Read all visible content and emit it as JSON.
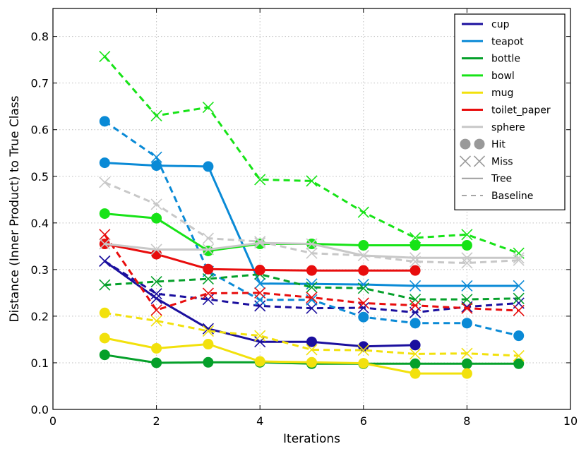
{
  "chart_data": {
    "type": "line",
    "title": "",
    "xlabel": "Iterations",
    "ylabel": "Distance (Inner Product) to True Class",
    "xlim": [
      0,
      10
    ],
    "ylim": [
      0.0,
      0.86
    ],
    "xticks": [
      0,
      2,
      4,
      6,
      8,
      10
    ],
    "xtick_labels": [
      "0",
      "2",
      "4",
      "6",
      "8",
      "10"
    ],
    "yticks": [
      0.0,
      0.1,
      0.2,
      0.3,
      0.4,
      0.5,
      0.6,
      0.7,
      0.8
    ],
    "ytick_labels": [
      "0.0",
      "0.1",
      "0.2",
      "0.3",
      "0.4",
      "0.5",
      "0.6",
      "0.7",
      "0.8"
    ],
    "grid": true,
    "legend_position": "top-right",
    "legend_style_entries": [
      {
        "label": "Hit",
        "marker": "circle"
      },
      {
        "label": "Miss",
        "marker": "x"
      },
      {
        "label": "Tree",
        "linestyle": "solid"
      },
      {
        "label": "Baseline",
        "linestyle": "dashed"
      }
    ],
    "series": [
      {
        "name": "cup",
        "color": "#1b0f9e",
        "tree": {
          "x": [
            1,
            2,
            3,
            4,
            5,
            6,
            7
          ],
          "y": [
            0.318,
            0.238,
            0.173,
            0.145,
            0.145,
            0.135,
            0.138
          ],
          "markers": [
            "x",
            "x",
            "x",
            "x",
            "o",
            "o",
            "o"
          ]
        },
        "baseline": {
          "x": [
            1,
            2,
            3,
            4,
            5,
            6,
            7,
            8,
            9
          ],
          "y": [
            0.318,
            0.248,
            0.236,
            0.222,
            0.217,
            0.218,
            0.208,
            0.22,
            0.228
          ],
          "markers": [
            "x",
            "x",
            "x",
            "x",
            "x",
            "x",
            "x",
            "x",
            "x"
          ]
        }
      },
      {
        "name": "teapot",
        "color": "#0a8ad6",
        "tree": {
          "x": [
            1,
            2,
            3,
            4,
            5,
            6,
            7,
            8,
            9
          ],
          "y": [
            0.529,
            0.523,
            0.521,
            0.27,
            0.269,
            0.268,
            0.265,
            0.265,
            0.265
          ],
          "markers": [
            "o",
            "o",
            "o",
            "x",
            "x",
            "x",
            "x",
            "x",
            "x"
          ]
        },
        "baseline": {
          "x": [
            1,
            2,
            3,
            4,
            5,
            6,
            7,
            8,
            9
          ],
          "y": [
            0.618,
            0.541,
            0.296,
            0.235,
            0.235,
            0.198,
            0.185,
            0.185,
            0.158
          ],
          "markers": [
            "o",
            "x",
            "x",
            "x",
            "x",
            "o",
            "o",
            "o",
            "o"
          ]
        }
      },
      {
        "name": "bottle",
        "color": "#05a02a",
        "tree": {
          "x": [
            1,
            2,
            3,
            4,
            5,
            6,
            7,
            8,
            9
          ],
          "y": [
            0.117,
            0.1,
            0.101,
            0.101,
            0.098,
            0.098,
            0.098,
            0.098,
            0.098
          ],
          "markers": [
            "o",
            "o",
            "o",
            "o",
            "o",
            "o",
            "o",
            "o",
            "o"
          ]
        },
        "baseline": {
          "x": [
            1,
            2,
            3,
            4,
            5,
            6,
            7,
            8,
            9
          ],
          "y": [
            0.267,
            0.274,
            0.28,
            0.29,
            0.262,
            0.26,
            0.236,
            0.236,
            0.238
          ],
          "markers": [
            "x",
            "x",
            "x",
            "x",
            "x",
            "x",
            "x",
            "x",
            "x"
          ]
        }
      },
      {
        "name": "bowl",
        "color": "#17e317",
        "tree": {
          "x": [
            1,
            2,
            3,
            4,
            5,
            6,
            7,
            8
          ],
          "y": [
            0.42,
            0.41,
            0.34,
            0.355,
            0.355,
            0.352,
            0.352,
            0.352
          ],
          "markers": [
            "o",
            "o",
            "o",
            "o",
            "o",
            "o",
            "o",
            "o"
          ]
        },
        "baseline": {
          "x": [
            1,
            2,
            3,
            4,
            5,
            6,
            7,
            8,
            9
          ],
          "y": [
            0.757,
            0.63,
            0.648,
            0.493,
            0.49,
            0.423,
            0.368,
            0.375,
            0.335
          ],
          "markers": [
            "x",
            "x",
            "x",
            "x",
            "x",
            "x",
            "x",
            "x",
            "x"
          ]
        }
      },
      {
        "name": "mug",
        "color": "#f2e10c",
        "tree": {
          "x": [
            1,
            2,
            3,
            4,
            5,
            6,
            7,
            8
          ],
          "y": [
            0.153,
            0.131,
            0.14,
            0.103,
            0.101,
            0.099,
            0.077,
            0.077
          ],
          "markers": [
            "o",
            "o",
            "o",
            "o",
            "o",
            "o",
            "o",
            "o"
          ]
        },
        "baseline": {
          "x": [
            1,
            2,
            3,
            4,
            5,
            6,
            7,
            8,
            9
          ],
          "y": [
            0.207,
            0.19,
            0.168,
            0.158,
            0.128,
            0.127,
            0.119,
            0.12,
            0.115
          ],
          "markers": [
            "o",
            "x",
            "x",
            "x",
            "x",
            "x",
            "x",
            "x",
            "x"
          ]
        }
      },
      {
        "name": "toilet_paper",
        "color": "#e80d0d",
        "tree": {
          "x": [
            1,
            2,
            3,
            4,
            5,
            6,
            7
          ],
          "y": [
            0.355,
            0.333,
            0.301,
            0.299,
            0.298,
            0.298,
            0.298
          ],
          "markers": [
            "o",
            "o",
            "o",
            "o",
            "o",
            "o",
            "o"
          ]
        },
        "baseline": {
          "x": [
            1,
            2,
            3,
            4,
            5,
            6,
            7,
            8,
            9
          ],
          "y": [
            0.375,
            0.213,
            0.249,
            0.25,
            0.24,
            0.228,
            0.223,
            0.217,
            0.212
          ],
          "markers": [
            "x",
            "x",
            "x",
            "x",
            "x",
            "x",
            "x",
            "x",
            "x"
          ]
        }
      },
      {
        "name": "sphere",
        "color": "#c8c8c8",
        "tree": {
          "x": [
            1,
            2,
            3,
            4,
            5,
            6,
            7,
            8,
            9
          ],
          "y": [
            0.355,
            0.343,
            0.343,
            0.357,
            0.355,
            0.33,
            0.325,
            0.325,
            0.325
          ],
          "markers": [
            "x",
            "x",
            "x",
            "x",
            "x",
            "x",
            "x",
            "x",
            "x"
          ]
        },
        "baseline": {
          "x": [
            1,
            2,
            3,
            4,
            5,
            6,
            7,
            8,
            9
          ],
          "y": [
            0.487,
            0.44,
            0.367,
            0.36,
            0.335,
            0.33,
            0.317,
            0.314,
            0.32
          ],
          "markers": [
            "x",
            "x",
            "x",
            "x",
            "x",
            "x",
            "x",
            "x",
            "x"
          ]
        }
      }
    ]
  }
}
